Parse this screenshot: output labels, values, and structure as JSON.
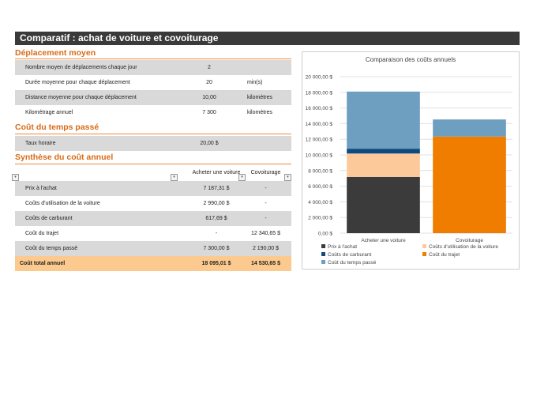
{
  "title": "Comparatif : achat de voiture et covoiturage",
  "sections": {
    "deplacement": "Déplacement moyen",
    "temps": "Coût du temps passé",
    "synthese": "Synthèse du coût annuel"
  },
  "deplacement_rows": [
    {
      "label": "Nombre moyen de déplacements chaque jour",
      "value": "2",
      "unit": ""
    },
    {
      "label": "Durée moyenne pour chaque déplacement",
      "value": "20",
      "unit": "min(s)"
    },
    {
      "label": "Distance moyenne pour chaque déplacement",
      "value": "10,00",
      "unit": "kilomètres"
    },
    {
      "label": "Kilométrage annuel",
      "value": "7 300",
      "unit": "kilomètres"
    }
  ],
  "temps_row": {
    "label": "Taux horaire",
    "value": "20,00 $"
  },
  "synthese_headers": {
    "col2": "Acheter une voiture",
    "col3": "Covoiturage",
    "dropdown": "▾"
  },
  "synthese_rows": [
    {
      "label": "Prix à l'achat",
      "voiture": "7 187,31 $",
      "covoit": "-"
    },
    {
      "label": "Coûts d'utilisation de la voiture",
      "voiture": "2 990,00 $",
      "covoit": "-"
    },
    {
      "label": "Coûts de carburant",
      "voiture": "617,69 $",
      "covoit": "-"
    },
    {
      "label": "Coût du trajet",
      "voiture": "-",
      "covoit": "12 340,65 $"
    },
    {
      "label": "Coût du temps passé",
      "voiture": "7 300,00 $",
      "covoit": "2 190,00 $"
    }
  ],
  "synthese_total": {
    "label": "Coût total annuel",
    "voiture": "18 095,01 $",
    "covoit": "14 530,65 $"
  },
  "chart_data": {
    "type": "bar",
    "stacked": true,
    "title": "Comparaison des coûts annuels",
    "categories": [
      "Acheter une voiture",
      "Covoiturage"
    ],
    "ylim": [
      0,
      20000
    ],
    "yticks": [
      "0,00 $",
      "2 000,00 $",
      "4 000,00 $",
      "6 000,00 $",
      "8 000,00 $",
      "10 000,00 $",
      "12 000,00 $",
      "14 000,00 $",
      "16 000,00 $",
      "18 000,00 $",
      "20 000,00 $"
    ],
    "grid": true,
    "legend_position": "bottom",
    "series": [
      {
        "name": "Prix à l'achat",
        "values": [
          7187.31,
          0
        ],
        "color": "#3b3b3b"
      },
      {
        "name": "Coûts d'utilisation de la voiture",
        "values": [
          2990.0,
          0
        ],
        "color": "#fcca9a"
      },
      {
        "name": "Coûts de carburant",
        "values": [
          617.69,
          0
        ],
        "color": "#0d4a80"
      },
      {
        "name": "Coût du trajet",
        "values": [
          0,
          12340.65
        ],
        "color": "#f07d00"
      },
      {
        "name": "Coût du temps passé",
        "values": [
          7300.0,
          2190.0
        ],
        "color": "#6f9fc0"
      }
    ]
  }
}
